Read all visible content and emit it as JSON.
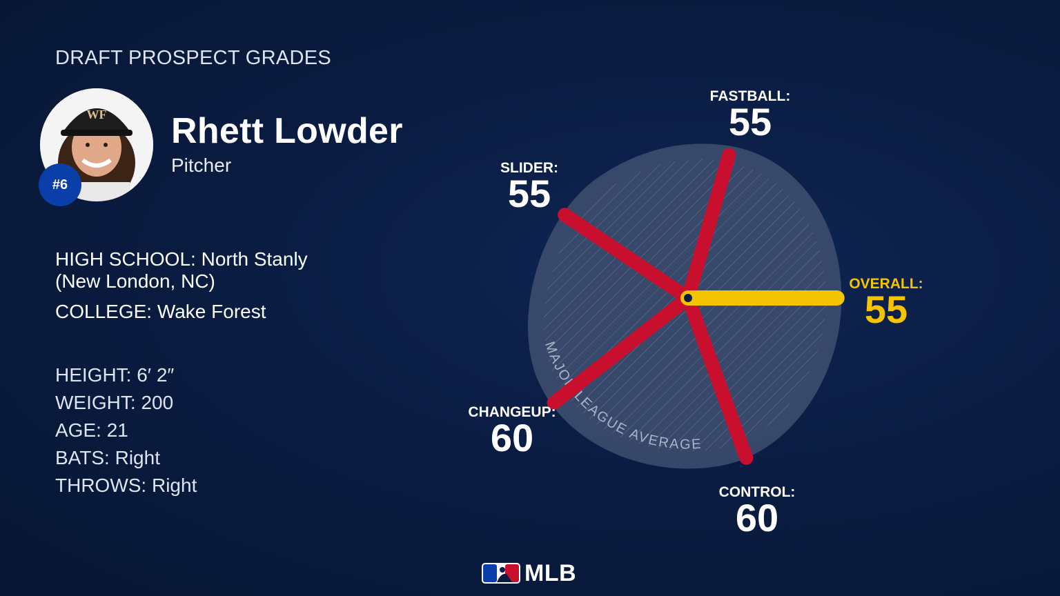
{
  "header": {
    "title": "DRAFT PROSPECT GRADES"
  },
  "player": {
    "name": "Rhett Lowder",
    "position": "Pitcher",
    "rank": "#6",
    "cap_letters": "WF"
  },
  "bio": {
    "high_school_label": "HIGH SCHOOL:",
    "high_school_value": "North Stanly",
    "high_school_line2": "(New London, NC)",
    "college_label": "COLLEGE:",
    "college_value": "Wake Forest",
    "height": "HEIGHT: 6′ 2″",
    "weight": "WEIGHT: 200",
    "age": "AGE: 21",
    "bats": "BATS: Right",
    "throws": "THROWS: Right"
  },
  "chart_data": {
    "type": "radial-bar",
    "center_label": "MAJOR LEAGUE AVERAGE",
    "scale": [
      20,
      80
    ],
    "grades": [
      {
        "name": "FASTBALL:",
        "value": 55,
        "angle": 74
      },
      {
        "name": "SLIDER:",
        "value": 55,
        "angle": 146
      },
      {
        "name": "CHANGEUP:",
        "value": 60,
        "angle": 218
      },
      {
        "name": "CONTROL:",
        "value": 60,
        "angle": 290
      },
      {
        "name": "OVERALL:",
        "value": 55,
        "angle": 0
      }
    ],
    "colors": {
      "tool": "#c8102e",
      "overall": "#f5c400",
      "disc": "#3c4c6e"
    }
  },
  "footer": {
    "brand": "MLB"
  }
}
